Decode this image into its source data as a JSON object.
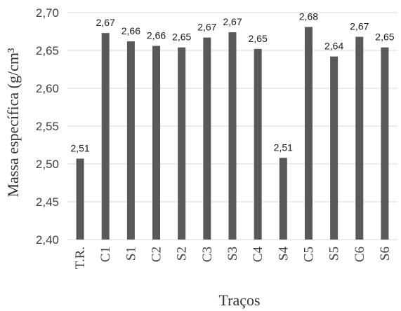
{
  "colors": {
    "bar": "#595959",
    "grid": "#d9d9d9"
  },
  "chart_data": {
    "type": "bar",
    "categories": [
      "T.R.",
      "C1",
      "S1",
      "C2",
      "S2",
      "C3",
      "S3",
      "C4",
      "S4",
      "C5",
      "S5",
      "C6",
      "S6"
    ],
    "values": [
      2.507,
      2.673,
      2.662,
      2.656,
      2.654,
      2.667,
      2.674,
      2.652,
      2.508,
      2.681,
      2.642,
      2.668,
      2.654
    ],
    "data_labels": [
      "2,51",
      "2,67",
      "2,66",
      "2,66",
      "2,65",
      "2,67",
      "2,67",
      "2,65",
      "2,51",
      "2,68",
      "2,64",
      "2,67",
      "2,65"
    ],
    "xlabel": "Traços",
    "ylabel": "Massa específica (g/cm³",
    "ylim": [
      2.4,
      2.7
    ],
    "yticks": [
      "2,40",
      "2,45",
      "2,50",
      "2,55",
      "2,60",
      "2,65",
      "2,70"
    ],
    "grid": true,
    "legend": "none"
  }
}
